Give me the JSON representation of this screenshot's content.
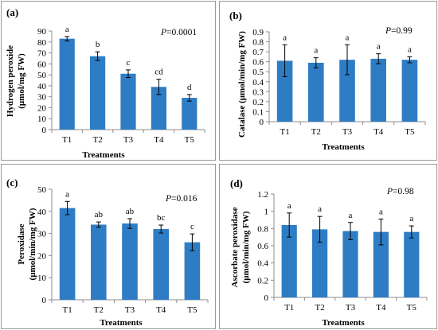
{
  "chart_data": [
    {
      "panel": "(a)",
      "type": "bar",
      "p_value_label": "P",
      "p_value": "=0.0001",
      "categories": [
        "T1",
        "T2",
        "T3",
        "T4",
        "T5"
      ],
      "values": [
        83,
        67,
        51,
        39,
        29
      ],
      "errors": [
        2,
        4,
        3.5,
        7,
        3
      ],
      "letters": [
        "a",
        "b",
        "c",
        "cd",
        "d"
      ],
      "xlabel": "Treatments",
      "ylabel_line1": "Hydrogen peroxide",
      "ylabel_line2": "(μmol/mg FW)",
      "ylim": [
        0,
        90
      ],
      "yticks": [
        0,
        10,
        20,
        30,
        40,
        50,
        60,
        70,
        80,
        90
      ],
      "ytick_labels": [
        "0",
        "10",
        "20",
        "30",
        "40",
        "50",
        "60",
        "70",
        "80",
        "90"
      ]
    },
    {
      "panel": "(b)",
      "type": "bar",
      "p_value_label": "P",
      "p_value": "=0.99",
      "categories": [
        "T1",
        "T2",
        "T3",
        "T4",
        "T5"
      ],
      "values": [
        0.61,
        0.59,
        0.62,
        0.63,
        0.62
      ],
      "errors": [
        0.16,
        0.05,
        0.15,
        0.05,
        0.03
      ],
      "letters": [
        "a",
        "a",
        "a",
        "a",
        "a"
      ],
      "xlabel": "Treatments",
      "ylabel_line1": "Catalase (μmol/min/mg FW)",
      "ylabel_line2": "",
      "ylim": [
        0,
        0.9
      ],
      "yticks": [
        0,
        0.1,
        0.2,
        0.3,
        0.4,
        0.5,
        0.6,
        0.7,
        0.8,
        0.9
      ],
      "ytick_labels": [
        "0",
        "0.1",
        "0.2",
        "0.3",
        "0.4",
        "0.5",
        "0.6",
        "0.7",
        "0.8",
        "0.9"
      ]
    },
    {
      "panel": "(c)",
      "type": "bar",
      "p_value_label": "P",
      "p_value": "=0.016",
      "categories": [
        "T1",
        "T2",
        "T3",
        "T4",
        "T5"
      ],
      "values": [
        41.5,
        34,
        34.5,
        32,
        26
      ],
      "errors": [
        3,
        1.2,
        2.2,
        1.8,
        3.8
      ],
      "letters": [
        "a",
        "ab",
        "ab",
        "bc",
        "c"
      ],
      "xlabel": "Treatments",
      "ylabel_line1": "Peroxidase",
      "ylabel_line2": "(μmol/min/mg FW)",
      "ylim": [
        0,
        50
      ],
      "yticks": [
        0,
        10,
        20,
        30,
        40,
        50
      ],
      "ytick_labels": [
        "0",
        "10",
        "20",
        "30",
        "40",
        "50"
      ]
    },
    {
      "panel": "(d)",
      "type": "bar",
      "p_value_label": "P",
      "p_value": "=0.98",
      "categories": [
        "T1",
        "T2",
        "T3",
        "T4",
        "T5"
      ],
      "values": [
        0.84,
        0.79,
        0.77,
        0.76,
        0.76
      ],
      "errors": [
        0.14,
        0.15,
        0.1,
        0.15,
        0.07
      ],
      "letters": [
        "a",
        "a",
        "a",
        "a",
        "a"
      ],
      "xlabel": "Treatments",
      "ylabel_line1": "Ascorbate peroxidase",
      "ylabel_line2": "(μmol/min/mg FW)",
      "ylim": [
        0,
        1.2
      ],
      "yticks": [
        0,
        0.2,
        0.4,
        0.6,
        0.8,
        1.0,
        1.2
      ],
      "ytick_labels": [
        "0",
        "0.2",
        "0.4",
        "0.6",
        "0.8",
        "1",
        "1.2"
      ]
    }
  ],
  "colors": {
    "bar": "#2e7dc4",
    "axis": "#8c8c8c",
    "error": "#000000"
  }
}
